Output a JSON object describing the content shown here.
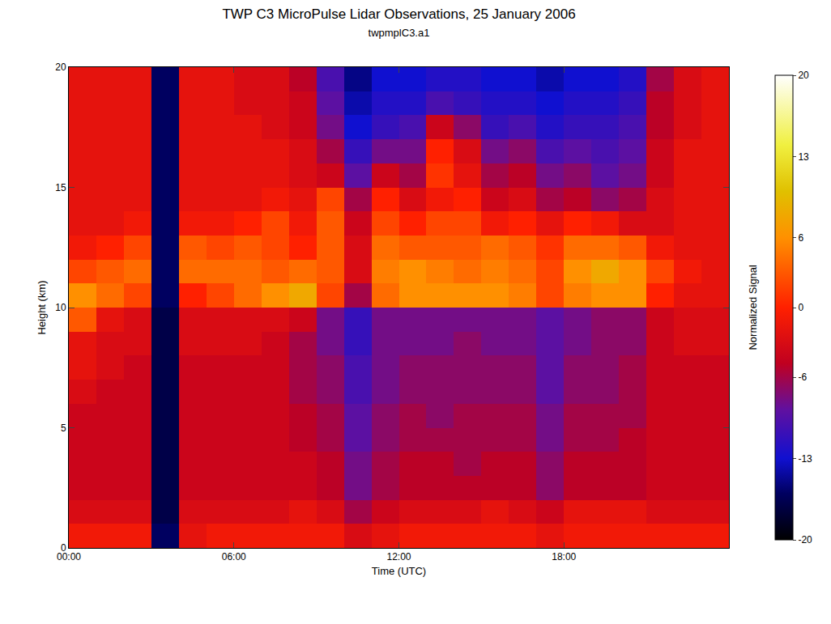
{
  "chart_data": {
    "type": "heatmap",
    "title": "TWP C3 MicroPulse Lidar Observations, 25 January 2006",
    "subtitle": "twpmplC3.a1",
    "x_label": "Time (UTC)",
    "y_label": "Height (km)",
    "x": [
      0.5,
      1.5,
      2.5,
      3.5,
      4.5,
      5.5,
      6.5,
      7.5,
      8.5,
      9.5,
      10.5,
      11.5,
      12.5,
      13.5,
      14.5,
      15.5,
      16.5,
      17.5,
      18.5,
      19.5,
      20.5,
      21.5,
      22.5,
      23.5
    ],
    "y": [
      0.5,
      1.5,
      2.5,
      3.5,
      4.5,
      5.5,
      6.5,
      7.5,
      8.5,
      9.5,
      10.5,
      11.5,
      12.5,
      13.5,
      14.5,
      15.5,
      16.5,
      17.5,
      18.5,
      19.5
    ],
    "z": [
      [
        -1,
        -1,
        -1,
        -16,
        -2,
        -1,
        -1,
        -1,
        -1,
        -1,
        -3,
        -2,
        -1,
        -1,
        -1,
        -1,
        -1,
        -2,
        -1,
        -1,
        -1,
        -1,
        -1,
        -1
      ],
      [
        -3,
        -3,
        -3,
        -17,
        -3,
        -3,
        -3,
        -3,
        -2,
        -3,
        -6,
        -4,
        -3,
        -3,
        -3,
        -2,
        -3,
        -4,
        -2,
        -2,
        -2,
        -3,
        -3,
        -3
      ],
      [
        -4,
        -4,
        -4,
        -17,
        -4,
        -4,
        -4,
        -4,
        -4,
        -5,
        -8,
        -6,
        -5,
        -5,
        -5,
        -5,
        -5,
        -7,
        -5,
        -5,
        -5,
        -4,
        -4,
        -4
      ],
      [
        -4,
        -4,
        -4,
        -17,
        -4,
        -4,
        -4,
        -4,
        -4,
        -5,
        -8,
        -6,
        -5,
        -5,
        -6,
        -5,
        -5,
        -7,
        -5,
        -5,
        -5,
        -4,
        -4,
        -4
      ],
      [
        -4,
        -4,
        -4,
        -17,
        -4,
        -4,
        -4,
        -4,
        -5,
        -6,
        -9,
        -7,
        -6,
        -6,
        -6,
        -6,
        -6,
        -8,
        -6,
        -6,
        -5,
        -4,
        -4,
        -4
      ],
      [
        -4,
        -4,
        -4,
        -17,
        -4,
        -4,
        -4,
        -4,
        -5,
        -6,
        -9,
        -7,
        -6,
        -7,
        -6,
        -6,
        -6,
        -8,
        -6,
        -6,
        -6,
        -4,
        -4,
        -4
      ],
      [
        -3,
        -4,
        -4,
        -17,
        -4,
        -4,
        -4,
        -4,
        -6,
        -7,
        -10,
        -8,
        -7,
        -7,
        -7,
        -7,
        -7,
        -9,
        -7,
        -7,
        -6,
        -4,
        -4,
        -4
      ],
      [
        -2,
        -3,
        -4,
        -17,
        -4,
        -4,
        -4,
        -4,
        -6,
        -7,
        -10,
        -8,
        -7,
        -7,
        -7,
        -7,
        -7,
        -9,
        -7,
        -7,
        -6,
        -4,
        -4,
        -4
      ],
      [
        -2,
        -3,
        -3,
        -17,
        -3,
        -3,
        -3,
        -4,
        -6,
        -8,
        -11,
        -8,
        -8,
        -8,
        -7,
        -8,
        -8,
        -9,
        -8,
        -7,
        -7,
        -4,
        -3,
        -3
      ],
      [
        3,
        -2,
        -3,
        -17,
        -3,
        -3,
        -3,
        -3,
        -4,
        -8,
        -11,
        -8,
        -8,
        -8,
        -8,
        -8,
        -8,
        -9,
        -8,
        -7,
        -7,
        -4,
        -3,
        -3
      ],
      [
        6,
        4,
        2,
        -16,
        0,
        2,
        4,
        6,
        8,
        2,
        -6,
        4,
        6,
        6,
        6,
        6,
        5,
        2,
        5,
        6,
        6,
        0,
        -2,
        -2
      ],
      [
        2,
        3,
        4,
        -16,
        4,
        4,
        4,
        3,
        4,
        3,
        -3,
        5,
        6,
        5,
        4,
        5,
        4,
        2,
        6,
        8,
        6,
        2,
        -1,
        -2
      ],
      [
        -1,
        0,
        2,
        -16,
        3,
        2,
        3,
        2,
        0,
        3,
        -3,
        4,
        3,
        3,
        3,
        4,
        3,
        1,
        4,
        4,
        3,
        -1,
        -2,
        -2
      ],
      [
        -2,
        -2,
        -1,
        -16,
        -1,
        -1,
        0,
        2,
        -1,
        3,
        -4,
        2,
        0,
        2,
        2,
        -1,
        0,
        -2,
        0,
        -1,
        -3,
        -3,
        -2,
        -2
      ],
      [
        -2,
        -2,
        -2,
        -16,
        -2,
        -2,
        -2,
        -1,
        -2,
        2,
        -6,
        0,
        -3,
        -1,
        0,
        -4,
        -3,
        -6,
        -5,
        -7,
        -6,
        -3,
        -2,
        -2
      ],
      [
        -2,
        -2,
        -2,
        -16,
        -2,
        -2,
        -2,
        -2,
        -3,
        -4,
        -9,
        -4,
        -6,
        1,
        -2,
        -6,
        -5,
        -8,
        -7,
        -9,
        -8,
        -4,
        -2,
        -2
      ],
      [
        -2,
        -2,
        -2,
        -16,
        -2,
        -2,
        -2,
        -2,
        -3,
        -6,
        -11,
        -8,
        -8,
        0,
        -3,
        -8,
        -7,
        -10,
        -9,
        -10,
        -9,
        -4,
        -2,
        -2
      ],
      [
        -2,
        -2,
        -2,
        -16,
        -2,
        -2,
        -2,
        -3,
        -4,
        -8,
        -13,
        -11,
        -10,
        -4,
        -7,
        -11,
        -10,
        -12,
        -11,
        -11,
        -10,
        -5,
        -3,
        -2
      ],
      [
        -2,
        -2,
        -2,
        -16,
        -2,
        -2,
        -3,
        -3,
        -4,
        -9,
        -14,
        -12,
        -12,
        -10,
        -11,
        -12,
        -12,
        -13,
        -12,
        -12,
        -11,
        -5,
        -3,
        -2
      ],
      [
        -2,
        -2,
        -2,
        -16,
        -2,
        -2,
        -3,
        -3,
        -5,
        -10,
        -15,
        -13,
        -13,
        -12,
        -12,
        -13,
        -13,
        -14,
        -13,
        -13,
        -12,
        -6,
        -3,
        -2
      ]
    ],
    "xlim": [
      0,
      24
    ],
    "xticks": [
      {
        "value": 0,
        "label": "00:00"
      },
      {
        "value": 6,
        "label": "06:00"
      },
      {
        "value": 12,
        "label": "12:00"
      },
      {
        "value": 18,
        "label": "18:00"
      }
    ],
    "ylim": [
      0,
      20
    ],
    "yticks": [
      0,
      5,
      10,
      15,
      20
    ],
    "colorbar_title": "Normalized Signal",
    "zlim": [
      -20,
      20
    ],
    "zticks": [
      -20,
      -13,
      -6,
      0,
      6,
      13,
      20
    ]
  }
}
